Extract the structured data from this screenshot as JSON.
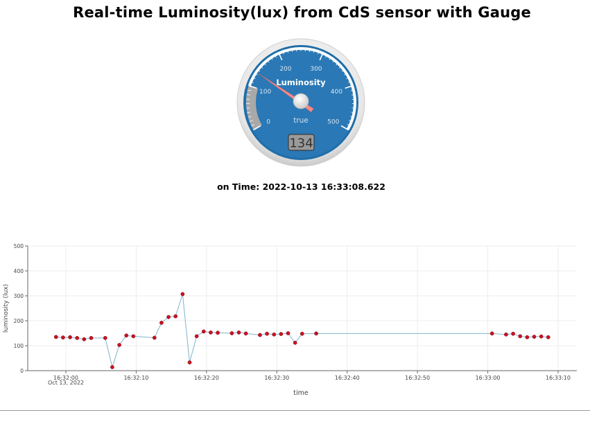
{
  "page": {
    "title": "Real-time Luminosity(lux) from CdS sensor with Gauge",
    "time_prefix": "on Time:",
    "time_value": "2022-10-13 16:33:08.622"
  },
  "gauge": {
    "label": "Luminosity",
    "sublabel": "true",
    "value": 134,
    "display": "134",
    "min": 0,
    "max": 500,
    "ticks": [
      "0",
      "100",
      "200",
      "300",
      "400",
      "500"
    ],
    "highlight_range": [
      0,
      100
    ],
    "colors": {
      "face": "#2a78b5",
      "highlight": "#a9a9a9",
      "needle": "#f08c8c",
      "rim": "#e4e4e4"
    }
  },
  "chart_data": {
    "type": "line",
    "xlabel": "time",
    "ylabel": "luminosity (lux)",
    "ylim": [
      0,
      500
    ],
    "yticks": [
      "0",
      "100",
      "200",
      "300",
      "400",
      "500"
    ],
    "xticks": [
      "16:32:00",
      "16:32:10",
      "16:32:20",
      "16:32:30",
      "16:32:40",
      "16:32:50",
      "16:33:00",
      "16:33:10"
    ],
    "x_date_label": "Oct 13, 2022",
    "grid": true,
    "line_color": "#7fb3cc",
    "marker_color": "#cc1122",
    "series": [
      {
        "x": [
          "16:31:58.6",
          "16:31:59.6",
          "16:32:00.6",
          "16:32:01.6",
          "16:32:02.6",
          "16:32:03.6",
          "16:32:05.6",
          "16:32:06.6",
          "16:32:07.6",
          "16:32:08.6",
          "16:32:09.6",
          "16:32:12.6",
          "16:32:13.6",
          "16:32:14.6",
          "16:32:15.6",
          "16:32:16.6",
          "16:32:17.6",
          "16:32:18.6",
          "16:32:19.6",
          "16:32:20.6",
          "16:32:21.6",
          "16:32:23.6",
          "16:32:24.6",
          "16:32:25.6",
          "16:32:27.6",
          "16:32:28.6",
          "16:32:29.6",
          "16:32:30.6",
          "16:32:31.6",
          "16:32:32.6",
          "16:32:33.6",
          "16:32:35.6",
          "16:33:00.6",
          "16:33:02.6",
          "16:33:03.6",
          "16:33:04.6",
          "16:33:05.6",
          "16:33:06.6",
          "16:33:07.6",
          "16:33:08.6"
        ],
        "values": [
          135,
          133,
          134,
          131,
          126,
          131,
          131,
          14,
          103,
          141,
          138,
          132,
          192,
          215,
          218,
          307,
          33,
          138,
          157,
          153,
          152,
          150,
          153,
          149,
          143,
          148,
          145,
          147,
          150,
          112,
          148,
          149,
          149,
          145,
          148,
          138,
          134,
          136,
          137,
          134
        ]
      }
    ]
  }
}
